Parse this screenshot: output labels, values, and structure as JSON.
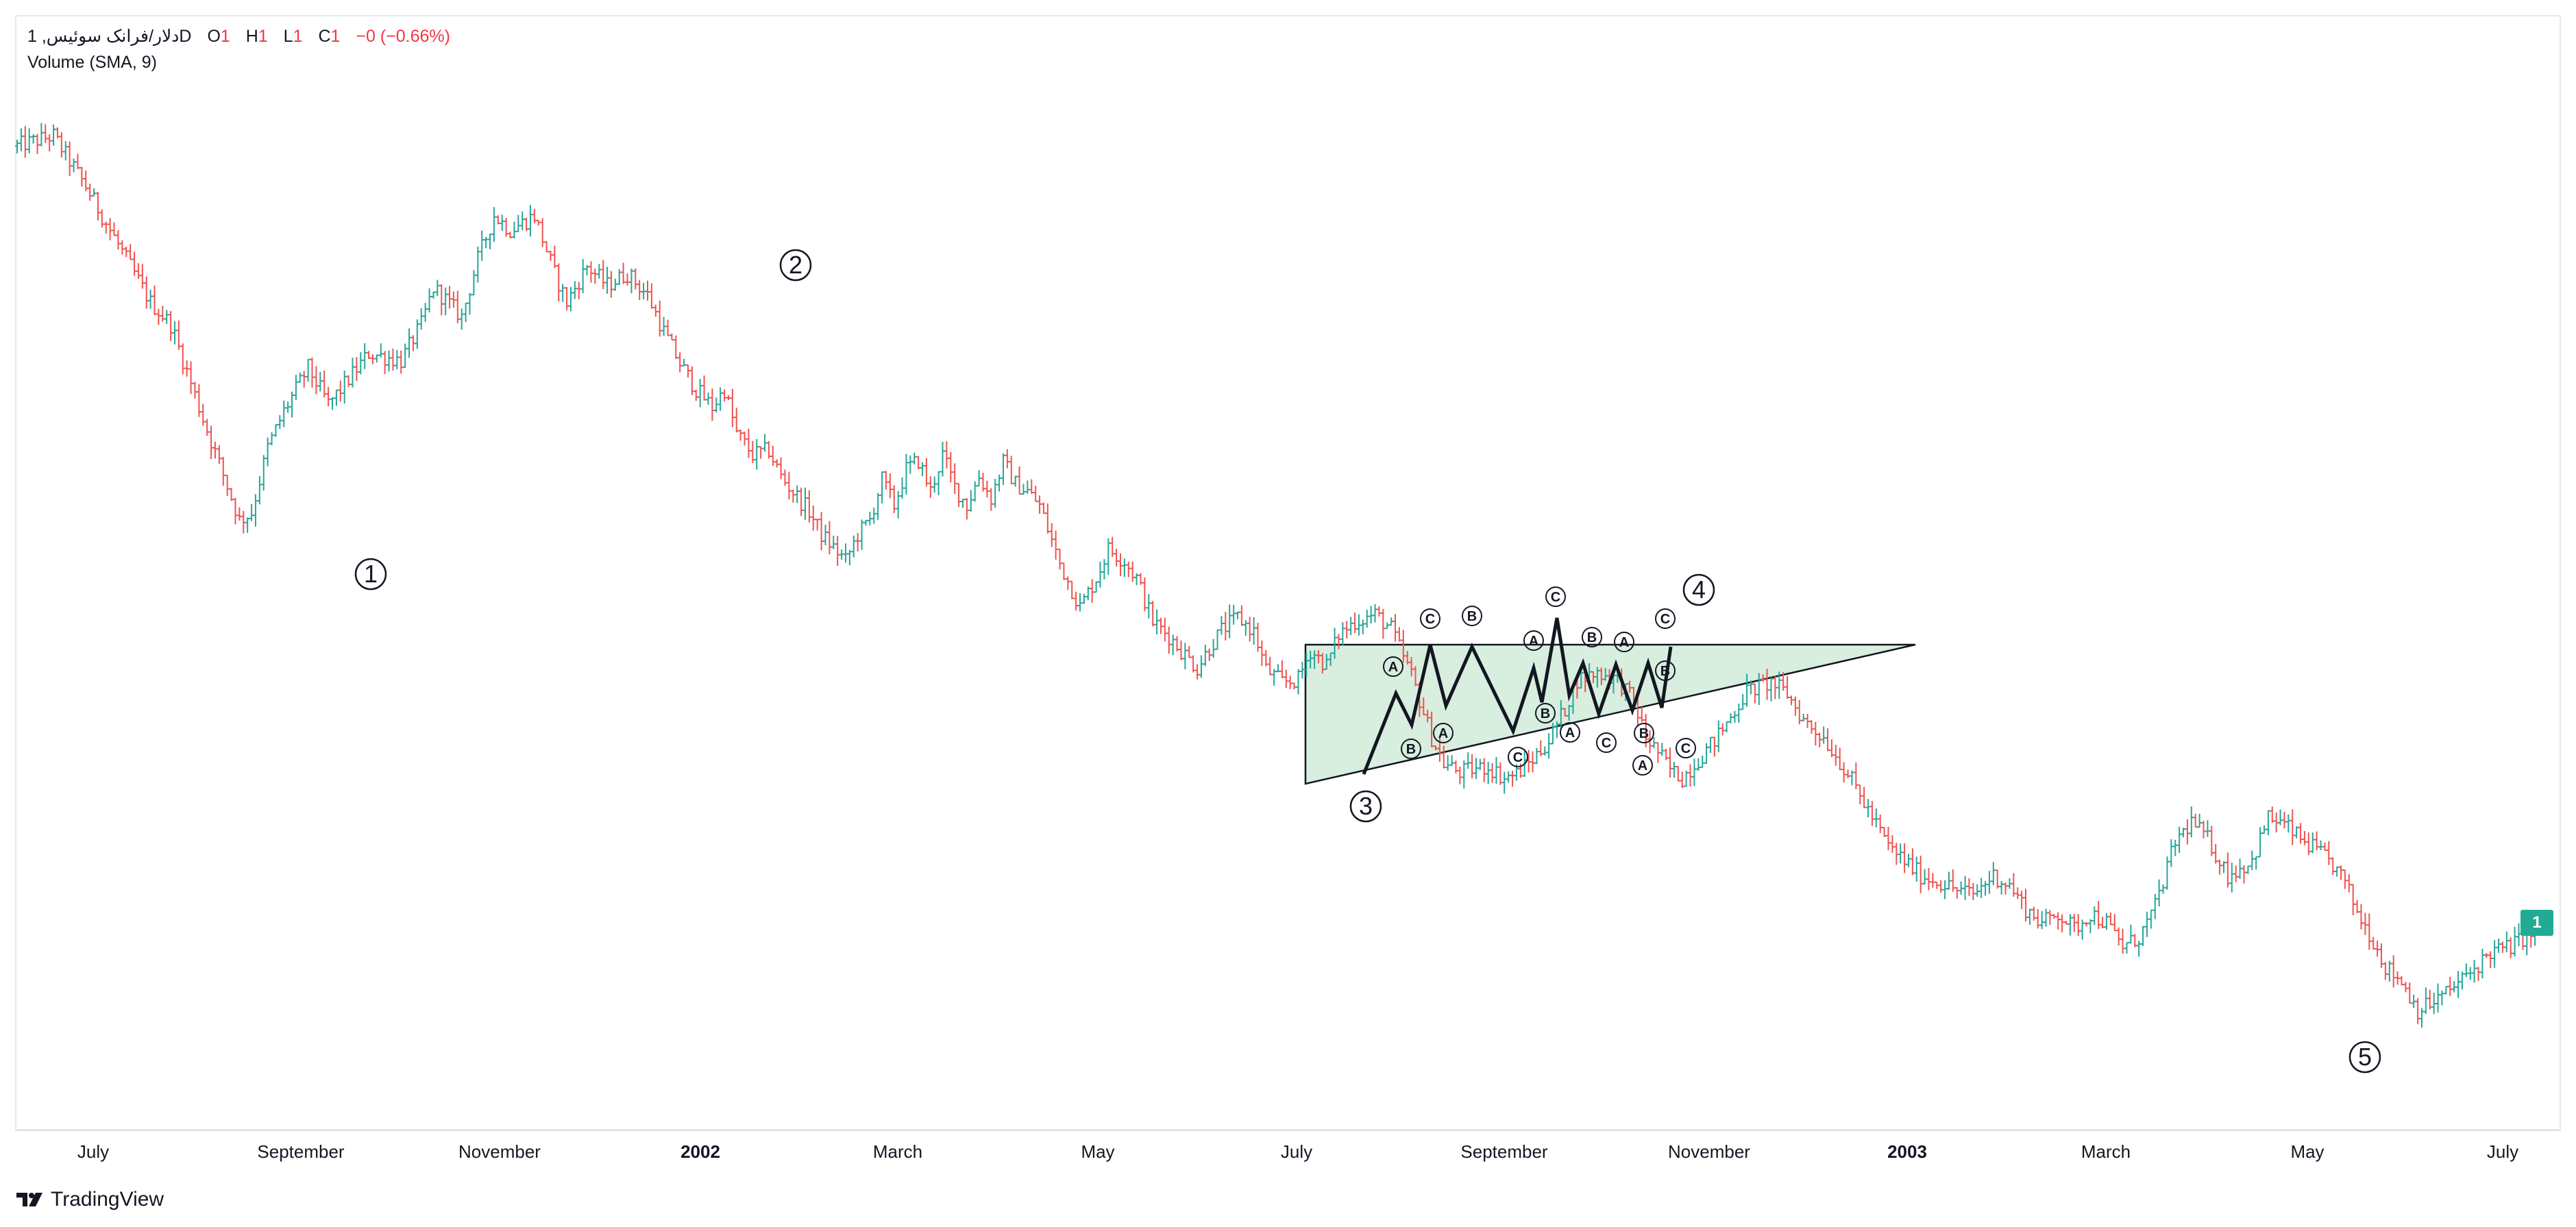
{
  "legend": {
    "symbol": "دلار/فرانک سوئیس, 1",
    "interval": "D",
    "open_label": "O",
    "open_value": "1",
    "high_label": "H",
    "high_value": "1",
    "low_label": "L",
    "low_value": "1",
    "close_label": "C",
    "close_value": "1",
    "change": "−0 (−0.66%)",
    "indicator": "Volume (SMA, 9)"
  },
  "price_badge": "1",
  "brand": "TradingView",
  "colors": {
    "up": "#26a69a",
    "down": "#ef5350",
    "badge": "#22ab94",
    "triangle_fill": "#d8eede"
  },
  "chart_data": {
    "type": "ohlc",
    "x_tick_labels": [
      "July",
      "September",
      "November",
      "2002",
      "March",
      "May",
      "July",
      "September",
      "November",
      "2003",
      "March",
      "May",
      "July"
    ],
    "x_tick_bold": [
      false,
      false,
      false,
      true,
      false,
      false,
      false,
      false,
      false,
      true,
      false,
      false,
      false
    ],
    "price_path": [
      [
        0,
        1.808
      ],
      [
        9,
        1.815
      ],
      [
        17,
        1.78
      ],
      [
        26,
        1.735
      ],
      [
        33,
        1.7
      ],
      [
        38,
        1.685
      ],
      [
        46,
        1.62
      ],
      [
        55,
        1.55
      ],
      [
        58,
        1.555
      ],
      [
        62,
        1.6
      ],
      [
        66,
        1.625
      ],
      [
        72,
        1.655
      ],
      [
        77,
        1.63
      ],
      [
        80,
        1.64
      ],
      [
        87,
        1.665
      ],
      [
        95,
        1.66
      ],
      [
        100,
        1.685
      ],
      [
        103,
        1.71
      ],
      [
        105,
        1.705
      ],
      [
        110,
        1.69
      ],
      [
        114,
        1.73
      ],
      [
        118,
        1.76
      ],
      [
        122,
        1.75
      ],
      [
        128,
        1.76
      ],
      [
        133,
        1.72
      ],
      [
        136,
        1.7
      ],
      [
        141,
        1.725
      ],
      [
        146,
        1.712
      ],
      [
        151,
        1.72
      ],
      [
        156,
        1.705
      ],
      [
        160,
        1.68
      ],
      [
        164,
        1.658
      ],
      [
        168,
        1.64
      ],
      [
        172,
        1.628
      ],
      [
        175,
        1.64
      ],
      [
        178,
        1.61
      ],
      [
        182,
        1.595
      ],
      [
        186,
        1.598
      ],
      [
        189,
        1.58
      ],
      [
        193,
        1.566
      ],
      [
        196,
        1.556
      ],
      [
        199,
        1.54
      ],
      [
        202,
        1.531
      ],
      [
        205,
        1.522
      ],
      [
        208,
        1.54
      ],
      [
        211,
        1.55
      ],
      [
        214,
        1.578
      ],
      [
        217,
        1.56
      ],
      [
        220,
        1.585
      ],
      [
        223,
        1.591
      ],
      [
        226,
        1.57
      ],
      [
        229,
        1.595
      ],
      [
        232,
        1.573
      ],
      [
        235,
        1.56
      ],
      [
        238,
        1.58
      ],
      [
        241,
        1.565
      ],
      [
        244,
        1.59
      ],
      [
        247,
        1.575
      ],
      [
        250,
        1.57
      ],
      [
        253,
        1.56
      ],
      [
        258,
        1.52
      ],
      [
        263,
        1.49
      ],
      [
        267,
        1.51
      ],
      [
        270,
        1.53
      ],
      [
        274,
        1.522
      ],
      [
        277,
        1.51
      ],
      [
        281,
        1.48
      ],
      [
        285,
        1.47
      ],
      [
        288,
        1.46
      ],
      [
        292,
        1.448
      ],
      [
        295,
        1.462
      ],
      [
        298,
        1.474
      ],
      [
        302,
        1.483
      ],
      [
        306,
        1.473
      ],
      [
        309,
        1.447
      ],
      [
        313,
        1.438
      ],
      [
        317,
        1.44
      ],
      [
        320,
        1.46
      ],
      [
        324,
        1.45
      ],
      [
        327,
        1.471
      ],
      [
        331,
        1.48
      ],
      [
        336,
        1.485
      ],
      [
        340,
        1.475
      ],
      [
        345,
        1.443
      ],
      [
        350,
        1.4
      ],
      [
        353,
        1.382
      ],
      [
        357,
        1.376
      ],
      [
        360,
        1.378
      ],
      [
        364,
        1.38
      ],
      [
        368,
        1.372
      ],
      [
        371,
        1.375
      ],
      [
        375,
        1.385
      ],
      [
        379,
        1.398
      ],
      [
        383,
        1.42
      ],
      [
        386,
        1.44
      ],
      [
        391,
        1.445
      ],
      [
        396,
        1.44
      ],
      [
        400,
        1.425
      ],
      [
        403,
        1.4
      ],
      [
        406,
        1.39
      ],
      [
        409,
        1.378
      ],
      [
        412,
        1.372
      ],
      [
        416,
        1.385
      ],
      [
        420,
        1.398
      ],
      [
        423,
        1.41
      ],
      [
        428,
        1.432
      ],
      [
        434,
        1.438
      ],
      [
        438,
        1.43
      ],
      [
        442,
        1.412
      ],
      [
        447,
        1.4
      ],
      [
        453,
        1.375
      ],
      [
        459,
        1.345
      ],
      [
        463,
        1.325
      ],
      [
        467,
        1.315
      ],
      [
        471,
        1.305
      ],
      [
        476,
        1.3
      ],
      [
        480,
        1.295
      ],
      [
        484,
        1.292
      ],
      [
        489,
        1.305
      ],
      [
        493,
        1.298
      ],
      [
        497,
        1.282
      ],
      [
        501,
        1.272
      ],
      [
        505,
        1.279
      ],
      [
        509,
        1.268
      ],
      [
        513,
        1.279
      ],
      [
        517,
        1.272
      ],
      [
        521,
        1.256
      ],
      [
        525,
        1.262
      ],
      [
        529,
        1.283
      ],
      [
        534,
        1.328
      ],
      [
        538,
        1.342
      ],
      [
        542,
        1.33
      ],
      [
        547,
        1.305
      ],
      [
        553,
        1.315
      ],
      [
        557,
        1.345
      ],
      [
        561,
        1.34
      ],
      [
        565,
        1.33
      ],
      [
        569,
        1.322
      ],
      [
        573,
        1.312
      ],
      [
        576,
        1.3
      ],
      [
        579,
        1.28
      ],
      [
        583,
        1.26
      ],
      [
        586,
        1.242
      ],
      [
        590,
        1.232
      ],
      [
        594,
        1.212
      ],
      [
        598,
        1.218
      ],
      [
        602,
        1.226
      ],
      [
        607,
        1.238
      ],
      [
        612,
        1.252
      ],
      [
        617,
        1.256
      ],
      [
        620,
        1.262
      ],
      [
        624,
        1.268
      ]
    ],
    "wave_labels": [
      "1",
      "2",
      "3",
      "4",
      "5"
    ],
    "sub_labels": [
      "A",
      "B",
      "C",
      "A",
      "B",
      "C",
      "A",
      "B",
      "C",
      "A",
      "B",
      "C",
      "A",
      "B",
      "C",
      "A",
      "B",
      "C"
    ]
  }
}
